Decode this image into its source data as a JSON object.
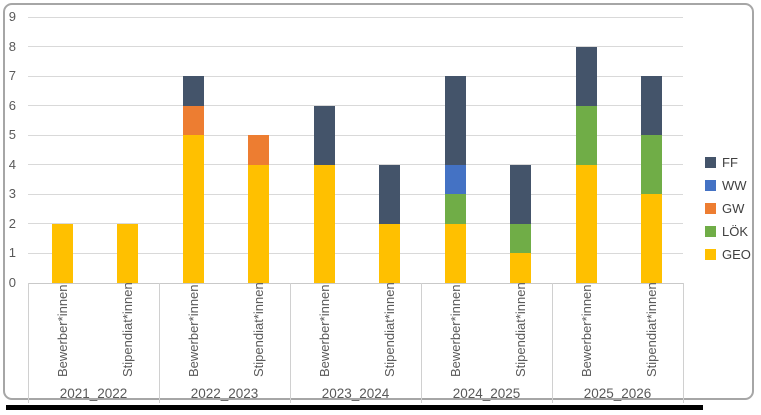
{
  "chart_data": {
    "type": "bar",
    "stacked": true,
    "title": "",
    "xlabel": "",
    "ylabel": "",
    "ylim": [
      0,
      9
    ],
    "yticks": [
      "0",
      "1",
      "2",
      "3",
      "4",
      "5",
      "6",
      "7",
      "8",
      "9"
    ],
    "grid": true,
    "legend_position": "right",
    "legend_order": [
      "FF",
      "WW",
      "GW",
      "LÖK",
      "GEO"
    ],
    "colors": {
      "FF": "#44546A",
      "WW": "#4472C4",
      "GW": "#ED7D31",
      "LÖK": "#70AD47",
      "GEO": "#FFC000"
    },
    "groups": [
      {
        "label": "2021_2022",
        "bars": [
          "Bewerber*innen",
          "Stipendiat*innen"
        ]
      },
      {
        "label": "2022_2023",
        "bars": [
          "Bewerber*innen",
          "Stipendiat*innen"
        ]
      },
      {
        "label": "2023_2024",
        "bars": [
          "Bewerber*innen",
          "Stipendiat*innen"
        ]
      },
      {
        "label": "2024_2025",
        "bars": [
          "Bewerber*innen",
          "Stipendiat*innen"
        ]
      },
      {
        "label": "2025_2026",
        "bars": [
          "Bewerber*innen",
          "Stipendiat*innen"
        ]
      }
    ],
    "bar_order_note": "values arrays run over 10 bars: group order above, Bewerber*innen then Stipendiat*innen within each group; series listed bottom-to-top of the stack",
    "series": [
      {
        "name": "GEO",
        "values": [
          2,
          2,
          5,
          4,
          4,
          2,
          2,
          1,
          4,
          3
        ]
      },
      {
        "name": "LÖK",
        "values": [
          0,
          0,
          0,
          0,
          0,
          0,
          1,
          1,
          2,
          2
        ]
      },
      {
        "name": "GW",
        "values": [
          0,
          0,
          1,
          1,
          0,
          0,
          0,
          0,
          0,
          0
        ]
      },
      {
        "name": "WW",
        "values": [
          0,
          0,
          0,
          0,
          0,
          0,
          1,
          0,
          0,
          0
        ]
      },
      {
        "name": "FF",
        "values": [
          0,
          0,
          1,
          0,
          2,
          2,
          3,
          2,
          2,
          2
        ]
      }
    ],
    "bar_totals": [
      2,
      2,
      7,
      5,
      6,
      4,
      7,
      4,
      8,
      7
    ]
  }
}
